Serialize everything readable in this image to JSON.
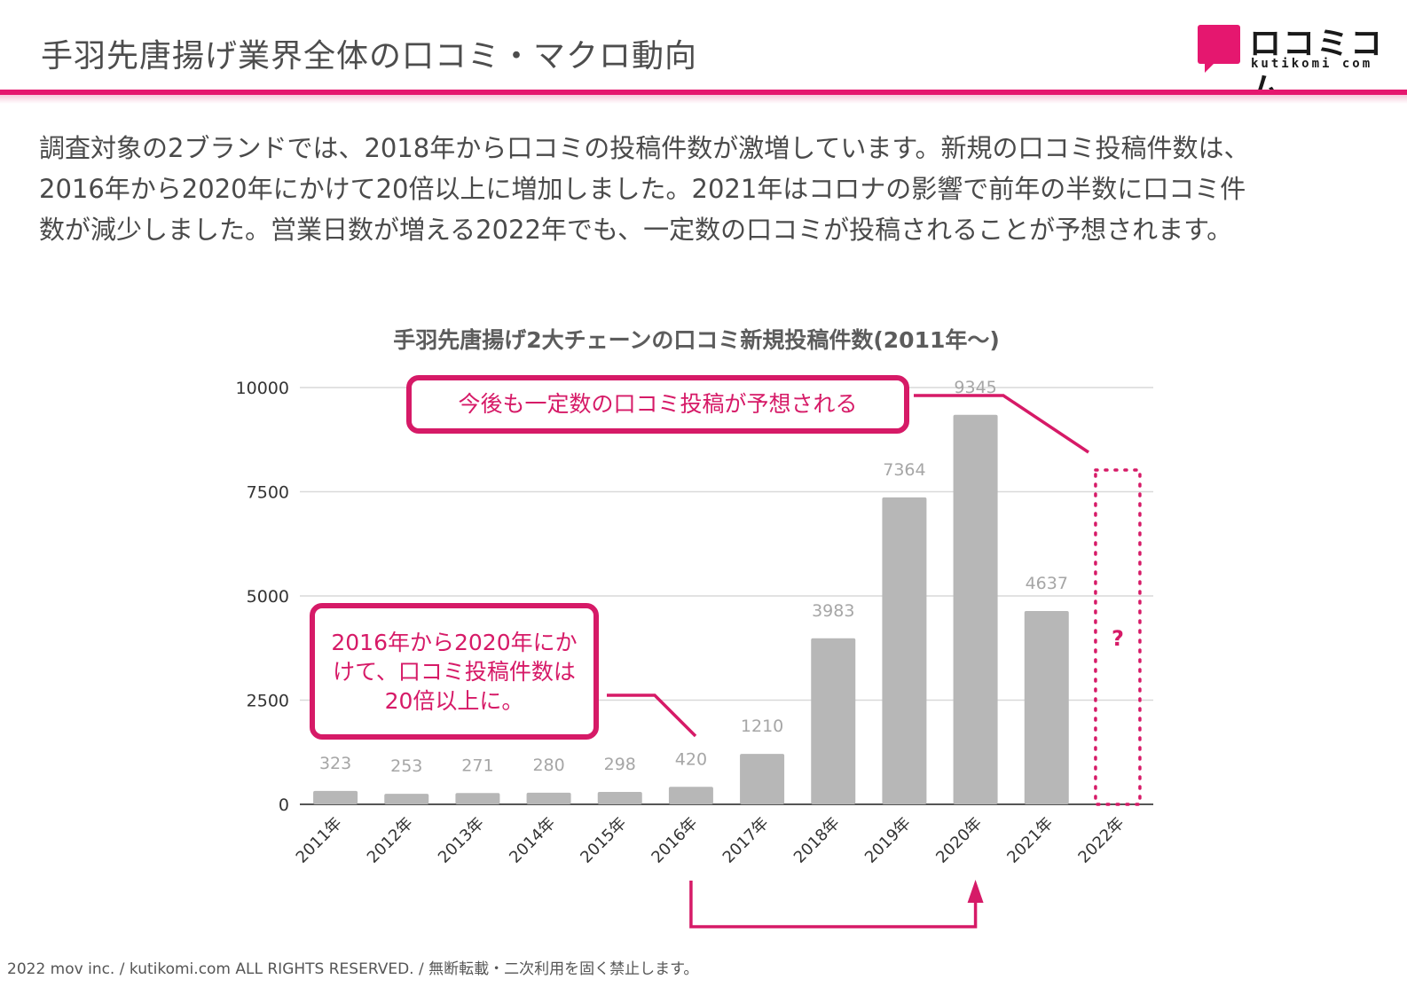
{
  "header": {
    "title": "手羽先唐揚げ業界全体の口コミ・マクロ動向",
    "logo_jp": "ロコミコム",
    "logo_en": "kutikomi com"
  },
  "lead": {
    "line1": "調査対象の2ブランドでは、2018年から口コミの投稿件数が激増しています。新規の口コミ投稿件数は、",
    "line2": "2016年から2020年にかけて20倍以上に増加しました。2021年はコロナの影響で前年の半数に口コミ件",
    "line3": "数が減少しました。営業日数が増える2022年でも、一定数の口コミが投稿されることが予想されます。"
  },
  "callouts": {
    "top": "今後も一定数の口コミ投稿が予想される",
    "left": [
      "2016年から2020年にか",
      "けて、口コミ投稿件数は",
      "20倍以上に。"
    ],
    "question": "?"
  },
  "chart_data": {
    "type": "bar",
    "title": "手羽先唐揚げ2大チェーンの口コミ新規投稿件数(2011年～)",
    "categories": [
      "2011年",
      "2012年",
      "2013年",
      "2014年",
      "2015年",
      "2016年",
      "2017年",
      "2018年",
      "2019年",
      "2020年",
      "2021年",
      "2022年"
    ],
    "values": [
      323,
      253,
      271,
      280,
      298,
      420,
      1210,
      3983,
      7364,
      9345,
      4637,
      null
    ],
    "data_labels": [
      "323",
      "253",
      "271",
      "280",
      "298",
      "420",
      "1210",
      "3983",
      "7364",
      "9345",
      "4637",
      ""
    ],
    "yticks": [
      0,
      2500,
      5000,
      7500,
      10000
    ],
    "ytick_labels": [
      "0",
      "2500",
      "5000",
      "7500",
      "10000"
    ],
    "ylim": [
      0,
      10000
    ],
    "xlabel": "",
    "ylabel": "",
    "bar_color": "#b7b7b7",
    "accent_color": "#d61a67",
    "forecast_category": "2022年"
  },
  "footer": {
    "text": "2022 mov inc. / kutikomi.com ALL RIGHTS RESERVED. / 無断転載・二次利用を固く禁止します。"
  }
}
